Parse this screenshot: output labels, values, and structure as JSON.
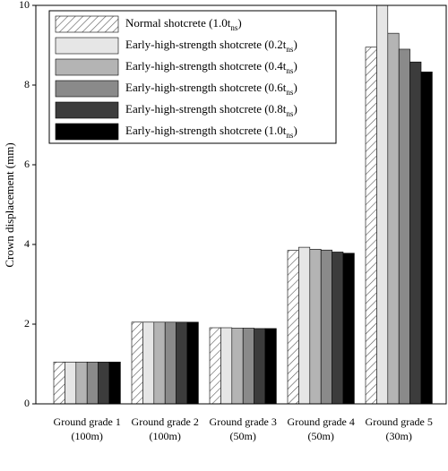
{
  "chart_data": {
    "type": "bar",
    "y_label": "Crown displacement (mm)",
    "categories": [
      [
        "Ground grade 1",
        "(100m)"
      ],
      [
        "Ground grade 2",
        "(100m)"
      ],
      [
        "Ground grade 3",
        "(50m)"
      ],
      [
        "Ground grade 4",
        "(50m)"
      ],
      [
        "Ground grade 5",
        "(30m)"
      ]
    ],
    "series": [
      {
        "name": "Normal shotcrete (1.0tns)",
        "color": "#ffffff",
        "pattern": "hatch",
        "values": [
          1.05,
          2.05,
          1.91,
          3.85,
          8.95
        ]
      },
      {
        "name": "Early-high-strength shotcrete (0.2tns)",
        "color": "#e6e6e6",
        "values": [
          1.05,
          2.05,
          1.91,
          3.93,
          10.0
        ]
      },
      {
        "name": "Early-high-strength shotcrete (0.4tns)",
        "color": "#b4b4b4",
        "values": [
          1.05,
          2.05,
          1.9,
          3.88,
          9.3
        ]
      },
      {
        "name": "Early-high-strength shotcrete (0.6tns)",
        "color": "#8a8a8a",
        "values": [
          1.05,
          2.05,
          1.9,
          3.86,
          8.9
        ]
      },
      {
        "name": "Early-high-strength shotcrete (0.8tns)",
        "color": "#3c3c3c",
        "values": [
          1.05,
          2.05,
          1.89,
          3.81,
          8.58
        ]
      },
      {
        "name": "Early-high-strength shotcrete (1.0tns)",
        "color": "#000000",
        "values": [
          1.05,
          2.05,
          1.89,
          3.78,
          8.33
        ]
      }
    ],
    "ylim": [
      0,
      10
    ],
    "yticks": [
      0,
      2,
      4,
      6,
      8,
      10
    ],
    "grid": false,
    "legend": "upper left"
  }
}
